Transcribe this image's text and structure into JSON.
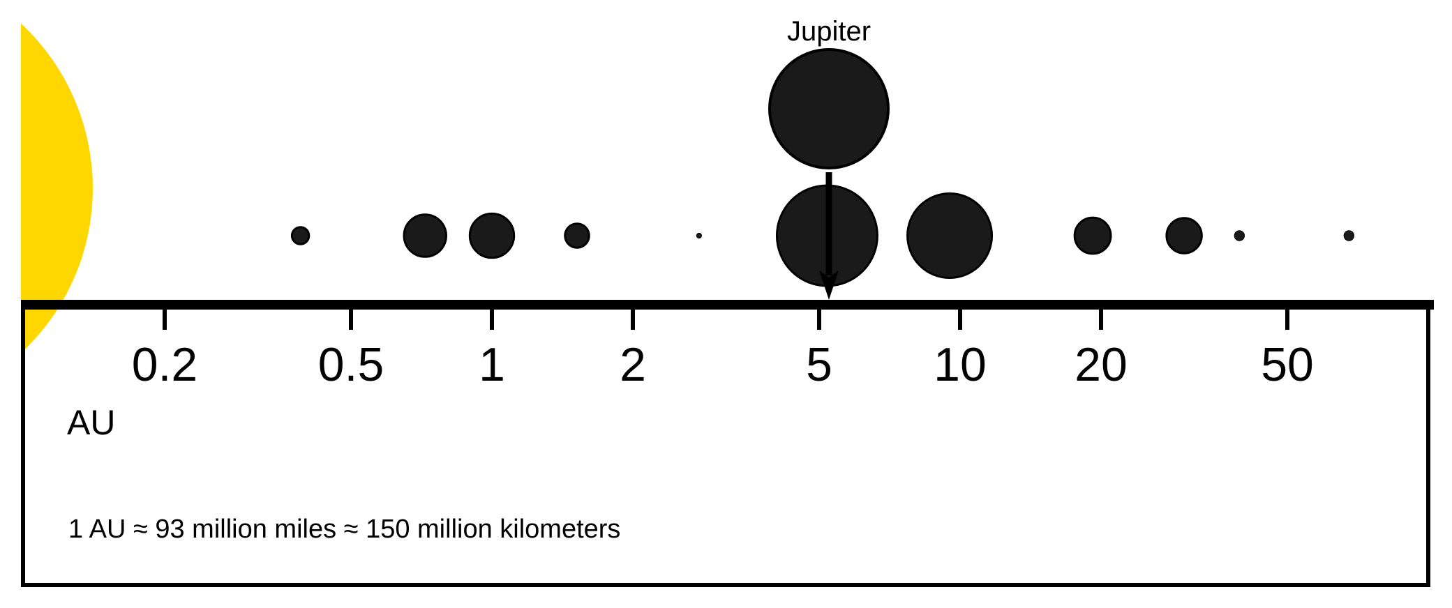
{
  "colors": {
    "background": "#ffffff",
    "sun": "#FFD700",
    "planet": "#1a1a1a",
    "stroke": "#000000"
  },
  "scale": {
    "type": "log",
    "unit_label": "AU",
    "ticks": [
      0.2,
      0.5,
      1,
      2,
      5,
      10,
      20,
      50
    ],
    "tick_labels": [
      "0.2",
      "0.5",
      "1",
      "2",
      "5",
      "10",
      "20",
      "50"
    ]
  },
  "bodies": [
    {
      "distance_au": 0.39,
      "size": 0.17
    },
    {
      "distance_au": 0.72,
      "size": 0.42
    },
    {
      "distance_au": 1.0,
      "size": 0.44
    },
    {
      "distance_au": 1.52,
      "size": 0.24
    },
    {
      "distance_au": 2.77,
      "size": 0.05
    },
    {
      "distance_au": 5.2,
      "size": 1.0,
      "label": "Jupiter"
    },
    {
      "distance_au": 9.5,
      "size": 0.84
    },
    {
      "distance_au": 19.2,
      "size": 0.36
    },
    {
      "distance_au": 30.1,
      "size": 0.35
    },
    {
      "distance_au": 39.5,
      "size": 0.1
    },
    {
      "distance_au": 67.7,
      "size": 0.1
    }
  ],
  "annotation": {
    "label": "Jupiter"
  },
  "note": "1 AU ≈ 93 million miles ≈ 150 million kilometers"
}
